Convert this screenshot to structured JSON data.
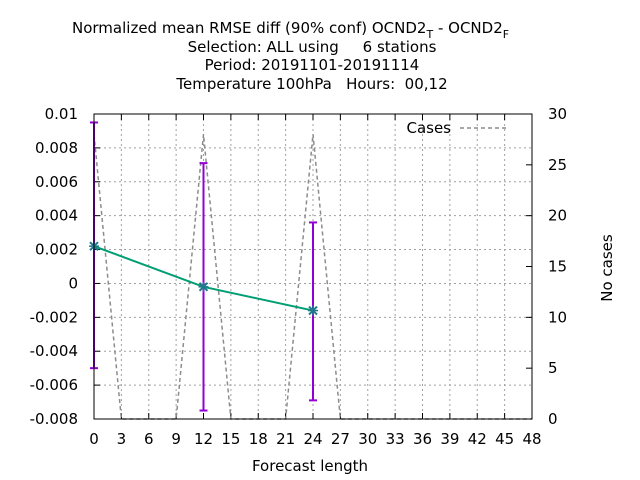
{
  "chart_data": {
    "type": "line",
    "title": {
      "line1_prefix": "Normalized mean RMSE diff (90% conf) OCND2",
      "line1_sub_t": "T",
      "line1_mid": " - OCND2",
      "line1_sub_f": "F",
      "line2": "Selection: ALL using     6 stations",
      "line3": "Period: 20191101-20191114",
      "line4": "Temperature 100hPa   Hours:  00,12"
    },
    "xlabel": "Forecast length",
    "y2label": "No cases",
    "xlim": [
      0,
      48
    ],
    "ylim": [
      -0.008,
      0.01
    ],
    "y2lim": [
      0,
      30
    ],
    "x_ticks": [
      "0",
      "3",
      "6",
      "9",
      "12",
      "15",
      "18",
      "21",
      "24",
      "27",
      "30",
      "33",
      "36",
      "39",
      "42",
      "45",
      "48"
    ],
    "y_ticks": [
      "0.01",
      "0.008",
      "0.006",
      "0.004",
      "0.002",
      "0",
      "-0.002",
      "-0.004",
      "-0.006",
      "-0.008"
    ],
    "y2_ticks": [
      "30",
      "25",
      "20",
      "15",
      "10",
      "5",
      "0"
    ],
    "grid": true,
    "legend": {
      "position": "top-right",
      "label": "Cases"
    },
    "series": [
      {
        "axis": "left",
        "color": "#009e73",
        "marker_color": "#1f7a8c",
        "error_color": "#9400d3",
        "x": [
          0,
          12,
          24
        ],
        "y": [
          0.0022,
          -0.0002,
          -0.0016
        ],
        "err_low": [
          -0.005,
          -0.0075,
          -0.0069
        ],
        "err_high": [
          0.0095,
          0.0071,
          0.0036
        ]
      },
      {
        "name": "Cases",
        "axis": "right",
        "color": "#8c8c8c",
        "x": [
          0,
          3,
          9,
          12,
          15,
          21,
          24,
          27,
          48
        ],
        "y": [
          28,
          0,
          0,
          28,
          0,
          0,
          28,
          0,
          0
        ]
      }
    ]
  }
}
